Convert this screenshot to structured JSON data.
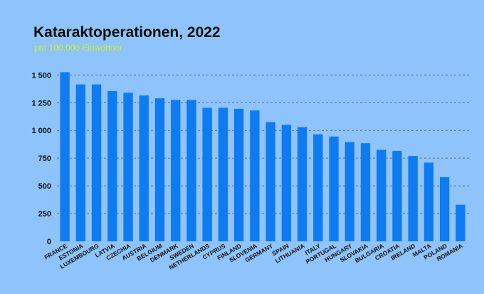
{
  "chart_data": {
    "type": "bar",
    "title": "Kataraktoperationen, 2022",
    "subtitle": "pro 100.000 Einwohner",
    "categories": [
      "FRANCE",
      "ESTONIA",
      "LUXEMBOURG",
      "LATVIA",
      "CZECHIA",
      "AUSTRIA",
      "BELGIUM",
      "DENMARK",
      "SWEDEN",
      "NETHERLANDS",
      "CYPRUS",
      "FINLAND",
      "SLOVENIA",
      "GERMANY",
      "SPAIN",
      "LITHUANIA",
      "ITALY",
      "PORTUGAL",
      "HUNGARY",
      "SLOVAKIA",
      "BULGARIA",
      "CROATIA",
      "IRELAND",
      "MALTA",
      "POLAND",
      "ROMANIA"
    ],
    "values": [
      1525,
      1415,
      1415,
      1355,
      1340,
      1315,
      1290,
      1275,
      1275,
      1205,
      1205,
      1195,
      1180,
      1075,
      1050,
      1030,
      965,
      945,
      895,
      885,
      825,
      815,
      770,
      710,
      578,
      330
    ],
    "yticks": [
      "0",
      "250",
      "500",
      "750",
      "1 000",
      "1 250",
      "1 500"
    ],
    "ytick_values": [
      0,
      250,
      500,
      750,
      1000,
      1250,
      1500
    ],
    "ylim": [
      0,
      1560
    ],
    "grid": true,
    "bar_color": "#0f7bef",
    "grid_color": "#5e6f86"
  }
}
